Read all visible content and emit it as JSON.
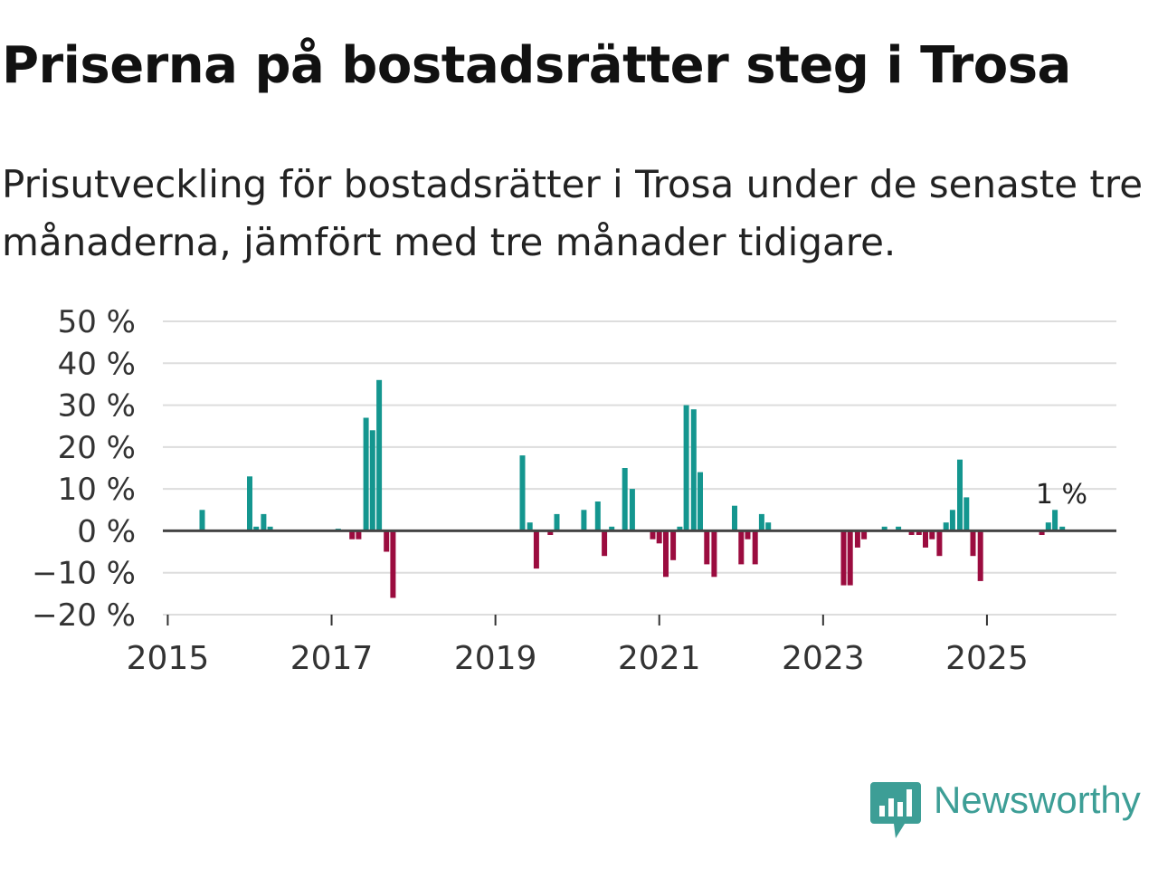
{
  "title": "Priserna på bostadsrätter steg i Trosa",
  "subtitle": "Prisutveckling för bostadsrätter i Trosa under de senaste tre månaderna, jämfört med tre månader tidigare.",
  "brand": {
    "name": "Newsworthy",
    "icon": "newsworthy-logo-icon",
    "color": "#3d9e96"
  },
  "colors": {
    "positive": "#14968f",
    "negative": "#9b0c3f",
    "grid": "#dddddd",
    "zero": "#444444"
  },
  "chart_data": {
    "type": "bar",
    "title": "Priserna på bostadsrätter steg i Trosa",
    "xlabel": "",
    "ylabel": "",
    "ylim": [
      -20,
      50
    ],
    "y_ticks": [
      -20,
      -10,
      0,
      10,
      20,
      30,
      40,
      50
    ],
    "y_tick_labels": [
      "−20 %",
      "−10 %",
      "0 %",
      "10 %",
      "20 %",
      "30 %",
      "40 %",
      "50 %"
    ],
    "x_range": [
      2014.94,
      2026.58
    ],
    "x_ticks": [
      2015,
      2017,
      2019,
      2021,
      2023,
      2025
    ],
    "x_tick_labels": [
      "2015",
      "2017",
      "2019",
      "2021",
      "2023",
      "2025"
    ],
    "grid": true,
    "annotation": {
      "text": "1 %",
      "x": 2026.0,
      "y": 1
    },
    "x": [
      2015.42,
      2016.0,
      2016.08,
      2016.17,
      2016.25,
      2017.08,
      2017.25,
      2017.33,
      2017.42,
      2017.5,
      2017.58,
      2017.67,
      2017.75,
      2019.33,
      2019.42,
      2019.5,
      2019.67,
      2019.75,
      2020.08,
      2020.25,
      2020.33,
      2020.42,
      2020.58,
      2020.67,
      2020.92,
      2021.0,
      2021.08,
      2021.17,
      2021.25,
      2021.33,
      2021.42,
      2021.5,
      2021.58,
      2021.67,
      2021.92,
      2022.0,
      2022.08,
      2022.17,
      2022.25,
      2022.33,
      2023.25,
      2023.33,
      2023.42,
      2023.5,
      2023.75,
      2023.92,
      2024.08,
      2024.17,
      2024.25,
      2024.33,
      2024.42,
      2024.5,
      2024.58,
      2024.67,
      2024.75,
      2024.83,
      2024.92,
      2025.67,
      2025.75,
      2025.83,
      2025.92
    ],
    "values": [
      5,
      13,
      1,
      4,
      1,
      0.5,
      -2,
      -2,
      27,
      24,
      36,
      -5,
      -16,
      18,
      2,
      -9,
      -1,
      4,
      5,
      7,
      -6,
      1,
      15,
      10,
      -2,
      -3,
      -11,
      -7,
      1,
      30,
      29,
      14,
      -8,
      -11,
      6,
      -8,
      -2,
      -8,
      4,
      2,
      -13,
      -13,
      -4,
      -2,
      1,
      1,
      -1,
      -1,
      -4,
      -2,
      -6,
      2,
      5,
      17,
      8,
      -6,
      -12,
      -1,
      2,
      5,
      1
    ]
  }
}
